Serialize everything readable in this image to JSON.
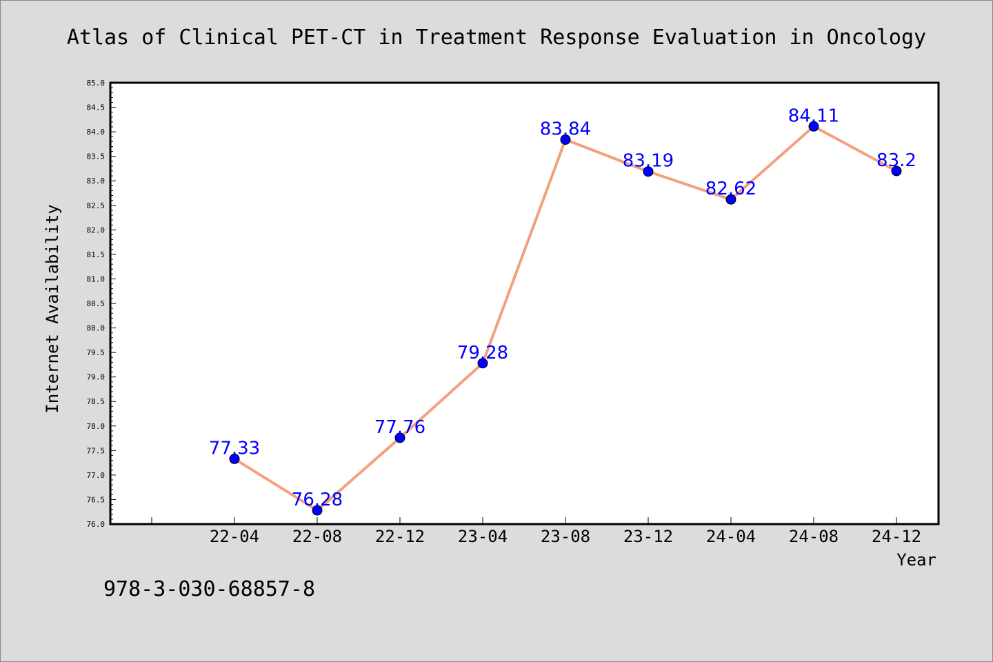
{
  "chart_data": {
    "type": "line",
    "title": "Atlas of Clinical PET-CT in Treatment Response Evaluation in Oncology",
    "xlabel": "Year",
    "ylabel": "Internet Availability",
    "categories": [
      "22-04",
      "22-08",
      "22-12",
      "23-04",
      "23-08",
      "23-12",
      "24-04",
      "24-08",
      "24-12"
    ],
    "values": [
      77.33,
      76.28,
      77.76,
      79.28,
      83.84,
      83.19,
      82.62,
      84.11,
      83.2
    ],
    "data_labels": [
      "77.33",
      "76.28",
      "77.76",
      "79.28",
      "83.84",
      "83.19",
      "82.62",
      "84.11",
      "83.2"
    ],
    "ylim": [
      76.0,
      85.0
    ],
    "yticks": [
      "76.0",
      "76.5",
      "77.0",
      "77.5",
      "78.0",
      "78.5",
      "79.0",
      "79.5",
      "80.0",
      "80.5",
      "81.0",
      "81.5",
      "82.0",
      "82.5",
      "83.0",
      "83.5",
      "84.0",
      "84.5",
      "85.0"
    ],
    "line_color": "#f4a07c",
    "marker_color": "#0000ff",
    "label_color": "#0000ff",
    "grid": false,
    "legend": "none"
  },
  "footnote": "978-3-030-68857-8"
}
